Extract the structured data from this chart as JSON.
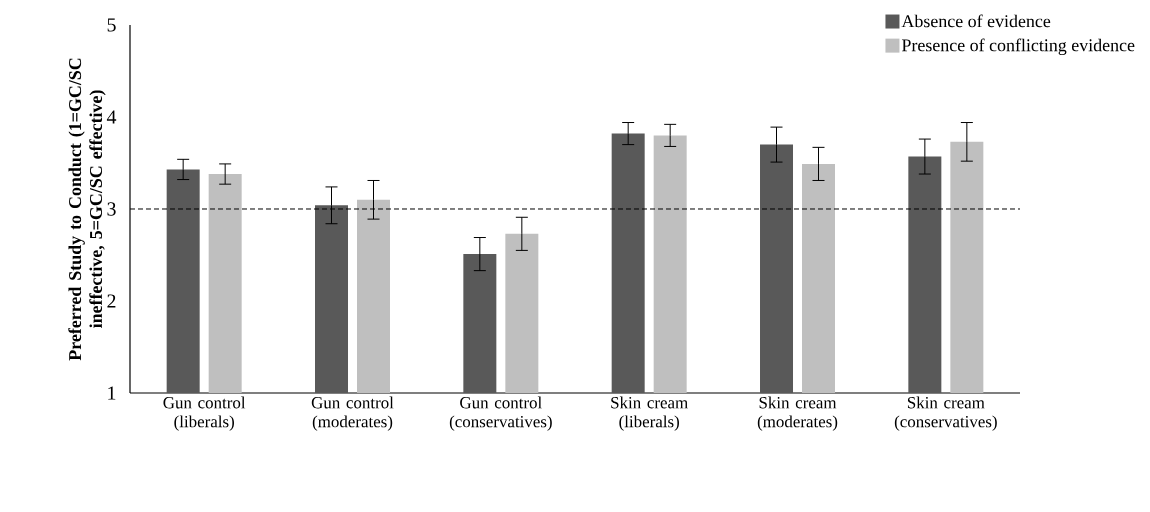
{
  "chart_data": {
    "type": "bar",
    "ylabel": "Preferred Study to Conduct (1=GC/SC ineffective, 5=GC/SC effective)",
    "categories": [
      "Gun control (liberals)",
      "Gun control (moderates)",
      "Gun control (conservatives)",
      "Skin cream (liberals)",
      "Skin cream (moderates)",
      "Skin cream (conservatives)"
    ],
    "series": [
      {
        "name": "Absence of evidence",
        "color": "#595959",
        "values": [
          3.43,
          3.04,
          2.51,
          3.82,
          3.7,
          3.57
        ],
        "errors": [
          0.11,
          0.2,
          0.18,
          0.12,
          0.19,
          0.19
        ]
      },
      {
        "name": "Presence of conflicting evidence",
        "color": "#bfbfbf",
        "values": [
          3.38,
          3.1,
          2.73,
          3.8,
          3.49,
          3.73
        ],
        "errors": [
          0.11,
          0.21,
          0.18,
          0.12,
          0.18,
          0.21
        ]
      }
    ],
    "ylim": [
      1,
      5
    ],
    "yticks": [
      1,
      2,
      3,
      4,
      5
    ],
    "grid": false,
    "legend": "top right",
    "ref_lines": [
      {
        "axis": "y",
        "value": 3,
        "color": "#000000",
        "line_style": "dashed"
      }
    ]
  }
}
